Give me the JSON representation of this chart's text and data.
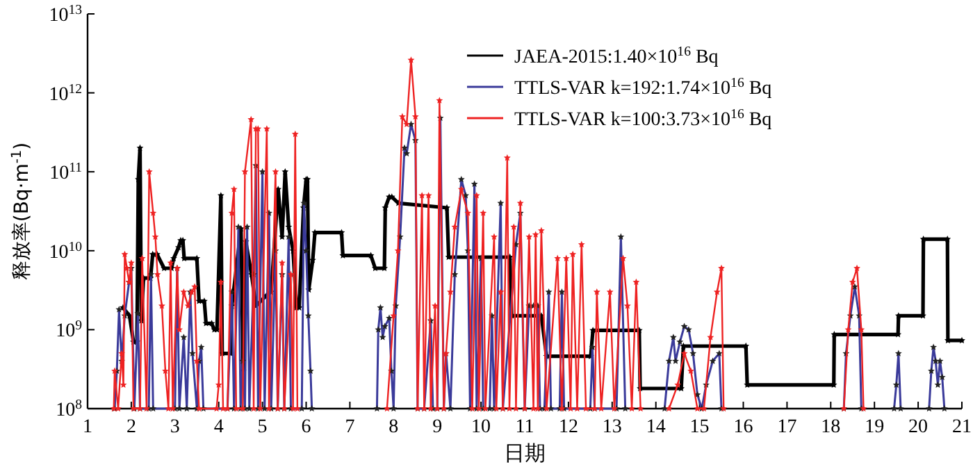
{
  "chart_data": {
    "type": "line",
    "xlabel": "日期",
    "ylabel": "释放率(Bq·m$^{-1}$)",
    "log": "y",
    "xlim": [
      1,
      21
    ],
    "ylim": [
      100000000.0,
      10000000000000.0
    ],
    "xticks": [
      1,
      2,
      3,
      4,
      5,
      6,
      7,
      8,
      9,
      10,
      11,
      12,
      13,
      14,
      15,
      16,
      17,
      18,
      19,
      20,
      21
    ],
    "yticks": [
      {
        "value": 100000000.0,
        "label": "10$^{8}$"
      },
      {
        "value": 1000000000.0,
        "label": "10$^{9}$"
      },
      {
        "value": 10000000000.0,
        "label": "10$^{10}$"
      },
      {
        "value": 100000000000.0,
        "label": "10$^{11}$"
      },
      {
        "value": 1000000000000.0,
        "label": "10$^{12}$"
      },
      {
        "value": 10000000000000.0,
        "label": "10$^{13}$"
      }
    ],
    "legend": "top right",
    "marker": "star",
    "line_style": "solid",
    "grid": false,
    "series": [
      {
        "name": "JAEA-2015:1.40×10$^{16}$ Bq",
        "color": "#000000",
        "x": [
          1.81,
          1.96,
          2.05,
          2.13,
          2.16,
          2.2,
          2.23,
          2.28,
          2.44,
          2.49,
          2.59,
          2.75,
          2.92,
          2.97,
          3.08,
          3.13,
          3.18,
          3.21,
          3.5,
          3.55,
          3.67,
          3.71,
          3.84,
          3.9,
          3.96,
          4.05,
          4.08,
          4.27,
          4.3,
          4.51,
          4.56,
          4.62,
          4.75,
          4.85,
          5.09,
          5.2,
          5.36,
          5.45,
          5.52,
          5.6,
          5.7,
          5.78,
          5.84,
          5.94,
          6.0,
          6.03,
          6.06,
          6.15,
          6.2,
          6.81,
          6.84,
          7.48,
          7.58,
          7.79,
          7.81,
          7.9,
          7.96,
          8.11,
          9.22,
          9.26,
          10.66,
          10.7,
          11.38,
          11.5,
          12.51,
          12.56,
          13.62,
          13.64,
          14.58,
          14.63,
          16.06,
          16.09,
          18.07,
          18.08,
          19.54,
          19.55,
          20.11,
          20.12,
          20.67,
          20.68,
          21
        ],
        "values": [
          1900000000.0,
          1500000000.0,
          700000000.0,
          700000000.0,
          80000000000.0,
          200000000000.0,
          1300000000.0,
          4500000000.0,
          4500000000.0,
          9000000000.0,
          9000000000.0,
          6000000000.0,
          6000000000.0,
          8000000000.0,
          11000000000.0,
          13500000000.0,
          13500000000.0,
          8000000000.0,
          8000000000.0,
          2300000000.0,
          2300000000.0,
          1200000000.0,
          1200000000.0,
          1000000000.0,
          1000000000.0,
          50000000000.0,
          500000000.0,
          500000000.0,
          2000000000.0,
          19000000000.0,
          300000000.0,
          13000000000.0,
          5000000000.0,
          2000000000.0,
          2700000000.0,
          3000000000.0,
          60000000000.0,
          15000000000.0,
          100000000000.0,
          20000000000.0,
          10000000000.0,
          1900000000.0,
          1900000000.0,
          35000000000.0,
          80000000000.0,
          80000000000.0,
          3200000000.0,
          7600000000.0,
          17000000000.0,
          17000000000.0,
          8700000000.0,
          8700000000.0,
          6000000000.0,
          6000000000.0,
          35000000000.0,
          48000000000.0,
          48000000000.0,
          40000000000.0,
          35000000000.0,
          8300000000.0,
          8300000000.0,
          1500000000.0,
          1500000000.0,
          460000000.0,
          460000000.0,
          980000000.0,
          980000000.0,
          180000000.0,
          180000000.0,
          620000000.0,
          620000000.0,
          200000000.0,
          200000000.0,
          870000000.0,
          870000000.0,
          1500000000.0,
          1500000000.0,
          14000000000.0,
          14000000000.0,
          730000000.0,
          730000000.0
        ]
      },
      {
        "name": "TTLS-VAR k=192:1.74×10$^{16}$ Bq",
        "color": "#3a3a9a",
        "x": [
          1.62,
          1.67,
          1.72,
          1.78,
          1.85,
          1.95,
          2.0,
          2.07,
          2.15,
          2.2,
          2.4,
          2.45,
          2.5,
          3.0,
          3.05,
          3.1,
          3.2,
          3.27,
          3.35,
          3.4,
          3.5,
          3.55,
          3.6,
          3.65,
          4.2,
          4.3,
          4.35,
          4.45,
          4.5,
          4.55,
          4.6,
          4.65,
          4.7,
          4.8,
          4.85,
          4.9,
          5.0,
          5.05,
          5.15,
          5.2,
          5.3,
          5.35,
          5.45,
          5.5,
          5.6,
          5.65,
          5.9,
          5.95,
          6.0,
          6.05,
          6.1,
          6.13,
          null,
          7.62,
          7.65,
          7.7,
          7.75,
          7.8,
          7.9,
          7.95,
          8.0,
          8.05,
          8.15,
          8.25,
          8.3,
          8.4,
          8.5,
          8.55,
          8.7,
          8.85,
          8.9,
          9.0,
          9.07,
          9.15,
          9.2,
          9.3,
          9.4,
          9.55,
          9.65,
          9.7,
          9.75,
          9.85,
          9.9,
          10.0,
          10.05,
          10.2,
          10.25,
          10.3,
          10.45,
          10.5,
          10.8,
          10.9,
          11.0,
          11.1,
          11.2,
          11.3,
          11.35,
          11.45,
          11.55,
          11.6,
          11.8,
          11.85,
          11.9,
          12.5,
          12.55,
          12.6,
          13.1,
          13.2,
          13.3,
          null,
          14.2,
          14.3,
          14.4,
          14.45,
          14.55,
          14.65,
          14.75,
          14.85,
          14.95,
          15.05,
          15.15,
          15.3,
          15.45,
          15.5,
          null,
          18.3,
          18.35,
          18.45,
          18.55,
          18.65,
          18.7,
          null,
          19.45,
          19.5,
          19.55,
          19.6,
          null,
          20.25,
          20.3,
          20.35,
          20.4,
          20.45,
          20.5,
          20.55,
          20.6
        ],
        "values": [
          100000000.0,
          300000000.0,
          1800000000.0,
          400000000.0,
          1500000000.0,
          4000000000.0,
          6000000000.0,
          100000000.0,
          1600000000.0,
          100000000.0,
          100000000.0,
          5000000000.0,
          100000000.0,
          100000000.0,
          6000000000.0,
          100000000.0,
          800000000.0,
          100000000.0,
          3000000000.0,
          500000000.0,
          100000000.0,
          400000000.0,
          600000000.0,
          100000000.0,
          100000000.0,
          3000000000.0,
          100000000.0,
          20000000000.0,
          100000000.0,
          400000000.0,
          100000000.0,
          20000000000.0,
          100000000.0,
          5000000000.0,
          120000000000.0,
          100000000.0,
          100000000000.0,
          100000000.0,
          30000000000.0,
          100000000.0,
          10000000000.0,
          100000000.0,
          5000000000.0,
          100000000.0,
          15000000000.0,
          100000000.0,
          100000000.0,
          40000000000.0,
          10000000000.0,
          1500000000.0,
          300000000.0,
          100000000.0,
          null,
          100000000.0,
          1000000000.0,
          1900000000.0,
          800000000.0,
          1100000000.0,
          1400000000.0,
          300000000.0,
          100000000.0,
          2000000000.0,
          15000000000.0,
          200000000000.0,
          170000000000.0,
          400000000000.0,
          250000000000.0,
          100000000.0,
          100000000.0,
          1300000000.0,
          100000000.0,
          100000000.0,
          480000000000.0,
          100000000.0,
          500000000.0,
          100000000.0,
          5000000000.0,
          80000000000.0,
          50000000000.0,
          10000000000.0,
          100000000.0,
          70000000000.0,
          100000000.0,
          8000000000.0,
          100000000.0,
          100000000.0,
          1500000000.0,
          100000000.0,
          40000000000.0,
          100000000.0,
          12000000000.0,
          30000000000.0,
          100000000.0,
          2000000000.0,
          2000000000.0,
          2000000000.0,
          100000000.0,
          100000000.0,
          3000000000.0,
          100000000.0,
          100000000.0,
          3000000000.0,
          100000000.0,
          100000000.0,
          600000000.0,
          100000000.0,
          100000000.0,
          15000000000.0,
          100000000.0,
          null,
          100000000.0,
          400000000.0,
          800000000.0,
          400000000.0,
          700000000.0,
          1100000000.0,
          1000000000.0,
          500000000.0,
          150000000.0,
          100000000.0,
          200000000.0,
          400000000.0,
          500000000.0,
          100000000.0,
          null,
          100000000.0,
          500000000.0,
          1500000000.0,
          3500000000.0,
          1500000000.0,
          100000000.0,
          null,
          100000000.0,
          200000000.0,
          500000000.0,
          100000000.0,
          null,
          100000000.0,
          300000000.0,
          600000000.0,
          400000000.0,
          200000000.0,
          400000000.0,
          250000000.0,
          100000000.0
        ]
      },
      {
        "name": "TTLS-VAR k=100:3.73×10$^{16}$ Bq",
        "color": "#ee2222",
        "x": [
          1.6,
          1.62,
          1.7,
          1.78,
          1.82,
          1.85,
          1.9,
          1.95,
          2.0,
          2.05,
          2.2,
          2.25,
          2.35,
          2.41,
          2.5,
          2.55,
          2.6,
          2.7,
          2.78,
          2.85,
          2.9,
          2.95,
          3.05,
          3.1,
          3.2,
          3.3,
          3.38,
          3.45,
          3.5,
          3.55,
          3.95,
          4.0,
          4.05,
          4.1,
          4.2,
          4.3,
          4.35,
          4.4,
          4.55,
          4.6,
          4.74,
          4.8,
          4.85,
          4.9,
          4.95,
          5.1,
          5.15,
          5.3,
          5.35,
          5.45,
          5.5,
          5.65,
          5.7,
          5.75,
          5.8,
          null,
          7.85,
          8.0,
          8.1,
          8.2,
          8.3,
          8.4,
          8.5,
          8.55,
          8.65,
          8.7,
          8.8,
          8.85,
          8.95,
          9.0,
          9.05,
          9.15,
          9.2,
          9.3,
          9.4,
          9.55,
          9.7,
          9.8,
          9.9,
          9.95,
          10.05,
          10.1,
          10.3,
          10.35,
          10.45,
          10.5,
          10.6,
          10.65,
          10.75,
          10.8,
          10.9,
          11.0,
          11.1,
          11.2,
          11.25,
          11.3,
          11.38,
          11.5,
          11.75,
          11.85,
          11.95,
          12.05,
          12.1,
          12.2,
          12.3,
          12.4,
          12.6,
          12.65,
          12.75,
          12.95,
          13.05,
          13.25,
          13.35,
          13.45,
          13.55,
          13.65,
          null,
          14.3,
          14.5,
          14.65,
          14.8,
          14.95,
          15.1,
          15.25,
          15.4,
          15.5,
          15.55,
          null,
          18.3,
          18.4,
          18.5,
          18.6,
          18.7,
          18.75
        ],
        "values": [
          100000000.0,
          300000000.0,
          100000000.0,
          500000000.0,
          200000000.0,
          9000000000.0,
          6000000000.0,
          4000000000.0,
          7000000000.0,
          100000000.0,
          100000000.0,
          8000000000.0,
          100000000.0,
          100000000000.0,
          30000000000.0,
          15000000000.0,
          5000000000.0,
          2000000000.0,
          300000000.0,
          100000000.0,
          7000000000.0,
          100000000.0,
          6000000000.0,
          1000000000.0,
          3000000000.0,
          2000000000.0,
          3000000000.0,
          3500000000.0,
          400000000.0,
          100000000.0,
          100000000.0,
          200000000.0,
          4000000000.0,
          100000000.0,
          100000000.0,
          30000000000.0,
          60000000000.0,
          100000000.0,
          100000000.0,
          100000000000.0,
          460000000000.0,
          100000000.0,
          350000000000.0,
          350000000000.0,
          100000000.0,
          350000000000.0,
          100000000.0,
          100000000000.0,
          100000000.0,
          7000000000.0,
          100000000.0,
          5000000000.0,
          100000000.0,
          300000000000.0,
          100000000.0,
          null,
          100000000.0,
          1500000000.0,
          10000000000.0,
          500000000000.0,
          400000000000.0,
          2600000000000.0,
          500000000000.0,
          100000000.0,
          50000000000.0,
          100000000.0,
          50000000000.0,
          100000000.0,
          2000000000.0,
          100000000.0,
          800000000000.0,
          100000000.0,
          500000000.0,
          3000000000.0,
          20000000000.0,
          60000000000.0,
          30000000000.0,
          100000000.0,
          50000000000.0,
          100000000.0,
          30000000000.0,
          100000000.0,
          15000000000.0,
          100000000.0,
          3000000000.0,
          100000000.0,
          150000000000.0,
          100000000.0,
          20000000000.0,
          100000000.0,
          40000000000.0,
          100000000.0,
          15000000000.0,
          100000000.0,
          16000000000.0,
          100000000.0,
          18000000000.0,
          100000000.0,
          8000000000.0,
          100000000.0,
          8000000000.0,
          100000000.0,
          9000000000.0,
          100000000.0,
          12000000000.0,
          100000000.0,
          100000000.0,
          3000000000.0,
          100000000.0,
          3000000000.0,
          100000000.0,
          8000000000.0,
          2000000000.0,
          100000000.0,
          4000000000.0,
          100000000.0,
          null,
          100000000.0,
          200000000.0,
          500000000.0,
          300000000.0,
          100000000.0,
          100000000.0,
          800000000.0,
          3000000000.0,
          6000000000.0,
          100000000.0,
          null,
          100000000.0,
          1000000000.0,
          4000000000.0,
          6000000000.0,
          1000000000.0,
          100000000.0
        ]
      }
    ]
  }
}
